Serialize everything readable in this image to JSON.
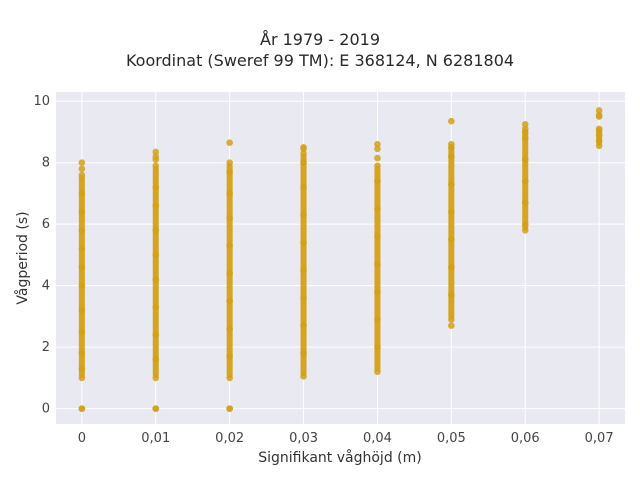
{
  "chart_data": {
    "type": "scatter",
    "title_lines": [
      "År 1979 - 2019",
      "Koordinat (Sweref 99 TM): E 368124, N 6281804"
    ],
    "xlabel": "Signifikant våghöjd (m)",
    "ylabel": "Vågperiod (s)",
    "xlim": [
      -0.0035,
      0.0735
    ],
    "ylim": [
      -0.5,
      10.3
    ],
    "x_ticks": [
      0,
      0.01,
      0.02,
      0.03,
      0.04,
      0.05,
      0.06,
      0.07
    ],
    "x_tick_labels": [
      "0",
      "0,01",
      "0,02",
      "0,03",
      "0,04",
      "0,05",
      "0,06",
      "0,07"
    ],
    "y_ticks": [
      0,
      2,
      4,
      6,
      8,
      10
    ],
    "y_tick_labels": [
      "0",
      "2",
      "4",
      "6",
      "8",
      "10"
    ],
    "grid": true,
    "marker_color": "#d4a017",
    "background_color": "#e9e9f1",
    "series": [
      {
        "x": 0,
        "dense_ranges": [
          [
            1.0,
            7.5
          ]
        ],
        "values": [
          0,
          0,
          1.0,
          1.3,
          1.8,
          2.5,
          3.2,
          4.0,
          4.6,
          5.2,
          5.8,
          6.4,
          7.0,
          7.5,
          7.6,
          7.8,
          8.0
        ]
      },
      {
        "x": 0.01,
        "dense_ranges": [
          [
            1.0,
            7.9
          ]
        ],
        "values": [
          0,
          0,
          1.0,
          1.6,
          2.4,
          3.3,
          4.2,
          5.0,
          5.8,
          6.6,
          7.2,
          7.9,
          8.1,
          8.2,
          8.35
        ]
      },
      {
        "x": 0.02,
        "dense_ranges": [
          [
            1.0,
            8.0
          ]
        ],
        "values": [
          0,
          0,
          1.0,
          1.7,
          2.6,
          3.5,
          4.4,
          5.3,
          6.2,
          7.0,
          7.7,
          8.0,
          8.65
        ]
      },
      {
        "x": 0.03,
        "dense_ranges": [
          [
            1.05,
            8.3
          ]
        ],
        "values": [
          1.05,
          1.8,
          2.7,
          3.6,
          4.5,
          5.4,
          6.3,
          7.2,
          8.0,
          8.3,
          8.45,
          8.5
        ]
      },
      {
        "x": 0.04,
        "dense_ranges": [
          [
            1.2,
            7.9
          ]
        ],
        "values": [
          1.2,
          2.0,
          2.9,
          3.8,
          4.7,
          5.6,
          6.5,
          7.4,
          7.9,
          8.15,
          8.45,
          8.6
        ]
      },
      {
        "x": 0.05,
        "dense_ranges": [
          [
            2.9,
            8.6
          ]
        ],
        "values": [
          2.7,
          2.9,
          3.7,
          4.6,
          5.5,
          6.4,
          7.3,
          8.2,
          8.5,
          8.6,
          9.35
        ]
      },
      {
        "x": 0.06,
        "dense_ranges": [
          [
            5.8,
            9.1
          ]
        ],
        "values": [
          5.8,
          6.0,
          6.7,
          7.4,
          8.1,
          8.8,
          9.0,
          9.1,
          9.25
        ]
      },
      {
        "x": 0.07,
        "dense_ranges": [
          [
            8.55,
            9.1
          ]
        ],
        "values": [
          8.55,
          8.7,
          8.9,
          9.05,
          9.1,
          9.5,
          9.55,
          9.7
        ]
      }
    ]
  }
}
